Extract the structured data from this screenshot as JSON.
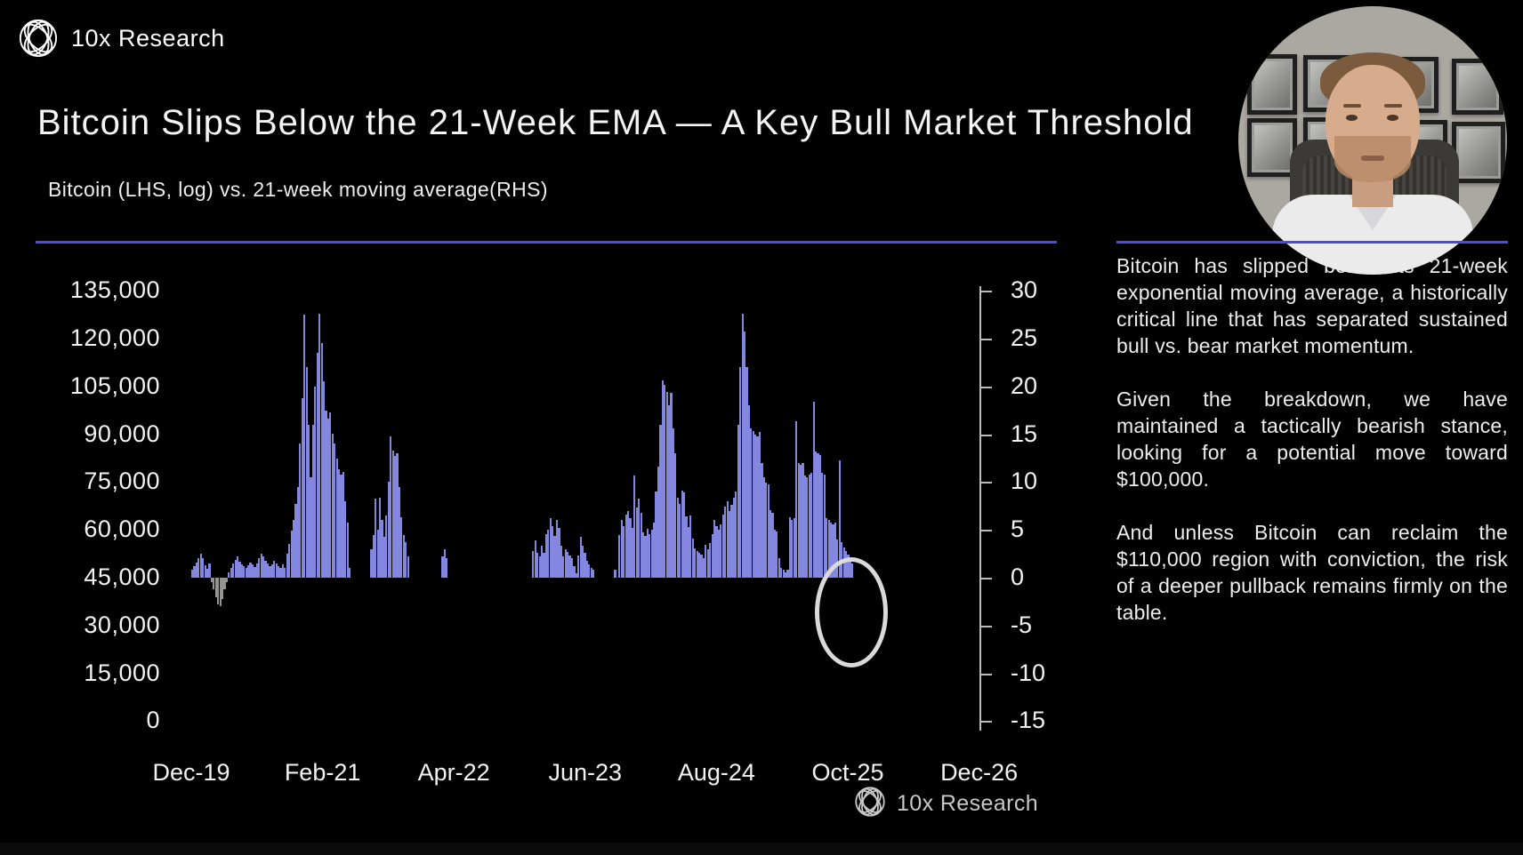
{
  "brand": {
    "name": "10x Research",
    "logo": "globe-lattice-icon"
  },
  "title": "Bitcoin Slips Below the 21-Week EMA — A Key Bull Market Threshold",
  "subtitle": "Bitcoin (LHS, log) vs. 21-week moving average(RHS)",
  "accent_color": "#4d4dd4",
  "bar_color": "#8487e0",
  "negative_bar_color": "#96948e",
  "annotation": {
    "shape": "ellipse",
    "color": "#dadada",
    "meaning": "circle around latest bars slipping toward zero"
  },
  "watermark": {
    "name": "10x Research"
  },
  "commentary": {
    "paragraphs": [
      "Bitcoin has slipped below its 21-week exponential moving average, a historically critical line that has separated sustained bull vs. bear market momentum.",
      "Given the breakdown, we have maintained a tactically bearish stance, looking for a potential move toward $100,000.",
      "And unless Bitcoin can reclaim the $110,000 region with conviction, the risk of a deeper pullback remains firmly on the table."
    ]
  },
  "chart_data": {
    "type": "bar",
    "title": "Bitcoin (LHS, log) vs. 21-week moving average(RHS)",
    "series_name": "Bitcoin deviation from 21-week moving average (weekly bars, RHS scale)",
    "frequency": "weekly",
    "start_label": "Dec-19",
    "x_tick_labels": [
      "Dec-19",
      "Feb-21",
      "Apr-22",
      "Jun-23",
      "Aug-24",
      "Oct-25",
      "Dec-26"
    ],
    "lhs_axis_ticks": [
      "135,000",
      "120,000",
      "105,000",
      "90,000",
      "75,000",
      "60,000",
      "45,000",
      "30,000",
      "15,000",
      "0"
    ],
    "rhs_axis_ticks": [
      30,
      25,
      20,
      15,
      10,
      5,
      0,
      -5,
      -10,
      -15
    ],
    "rhs_range": [
      -15,
      30
    ],
    "grid": false,
    "legend": false,
    "values": [
      0.8,
      1.2,
      1.6,
      2.0,
      2.5,
      2.0,
      1.3,
      0.9,
      1.5,
      -0.5,
      -1.2,
      -2.0,
      -2.8,
      -3.0,
      -2.2,
      -1.2,
      -0.5,
      0.6,
      1.0,
      1.5,
      1.9,
      2.2,
      1.7,
      1.4,
      1.2,
      1.0,
      1.3,
      1.6,
      1.4,
      1.1,
      1.5,
      2.0,
      2.5,
      2.2,
      1.8,
      1.5,
      1.2,
      1.4,
      1.8,
      1.5,
      1.2,
      1.0,
      1.4,
      1.0,
      2.5,
      3.5,
      4.9,
      6.0,
      7.7,
      9.5,
      14.0,
      18.8,
      27.5,
      22.0,
      16.0,
      10.5,
      16.0,
      20.0,
      23.5,
      27.6,
      24.5,
      20.5,
      17.5,
      16.6,
      17.3,
      15.1,
      14.0,
      12.5,
      11.3,
      10.8,
      11.1,
      8.0,
      5.8,
      1.0,
      0,
      0,
      0,
      0,
      0,
      0,
      0,
      0,
      0,
      3.0,
      4.5,
      8.3,
      5.0,
      8.4,
      6.0,
      4.3,
      6.5,
      10.0,
      14.8,
      13.3,
      12.7,
      13.0,
      9.5,
      6.3,
      4.5,
      3.7,
      2.2,
      0,
      0,
      0,
      0,
      0,
      0,
      0,
      0,
      0,
      0,
      0,
      0,
      0,
      0,
      0,
      2.2,
      3.0,
      2.0,
      0,
      0,
      0,
      0,
      0,
      0,
      0,
      0,
      0,
      0,
      0,
      0,
      0,
      0,
      0,
      0,
      0,
      0,
      0,
      0,
      0,
      0,
      0,
      0,
      0,
      0,
      0,
      0,
      0,
      0,
      0,
      0,
      0,
      0,
      0,
      0,
      0,
      0,
      0,
      2.8,
      3.9,
      2.6,
      2.2,
      3.3,
      2.6,
      4.6,
      5.0,
      6.2,
      5.4,
      4.4,
      6.0,
      5.2,
      3.3,
      2.2,
      3.0,
      2.7,
      2.3,
      2.0,
      1.2,
      0.5,
      2.3,
      4.3,
      3.3,
      2.6,
      1.8,
      1.4,
      1.0,
      0.8,
      0,
      0,
      0,
      0,
      0,
      0,
      0,
      0,
      0,
      0.8,
      0,
      4.5,
      6.0,
      5.4,
      6.6,
      7.0,
      6.2,
      5.2,
      10.7,
      7.3,
      8.3,
      6.8,
      4.7,
      4.4,
      5.1,
      4.6,
      5.0,
      5.8,
      9.0,
      11.6,
      16.0,
      20.6,
      20.2,
      19.4,
      18.0,
      19.3,
      15.6,
      13.0,
      8.4,
      7.7,
      9.1,
      8.9,
      6.4,
      5.3,
      6.5,
      4.1,
      3.1,
      2.8,
      2.6,
      2.4,
      2.0,
      3.4,
      3.0,
      3.6,
      4.6,
      6.0,
      5.4,
      5.0,
      5.6,
      6.6,
      7.4,
      8.0,
      7.0,
      7.6,
      8.4,
      9.0,
      16.0,
      22.0,
      27.6,
      25.7,
      22.0,
      18.0,
      15.6,
      15.3,
      15.0,
      14.8,
      15.2,
      12.0,
      10.5,
      9.9,
      9.8,
      7.1,
      6.8,
      5.0,
      4.8,
      2.0,
      1.0,
      0.8,
      0.6,
      0.8,
      6.3,
      6.0,
      6.2,
      16.4,
      12.0,
      11.8,
      12.0,
      10.7,
      10.5,
      10.8,
      11.0,
      18.4,
      13.2,
      13.0,
      12.8,
      11.0,
      10.8,
      6.2,
      6.0,
      5.8,
      5.6,
      5.8,
      4.0,
      12.3,
      3.7,
      3.2,
      2.8,
      2.4,
      1.9,
      1.5
    ]
  }
}
